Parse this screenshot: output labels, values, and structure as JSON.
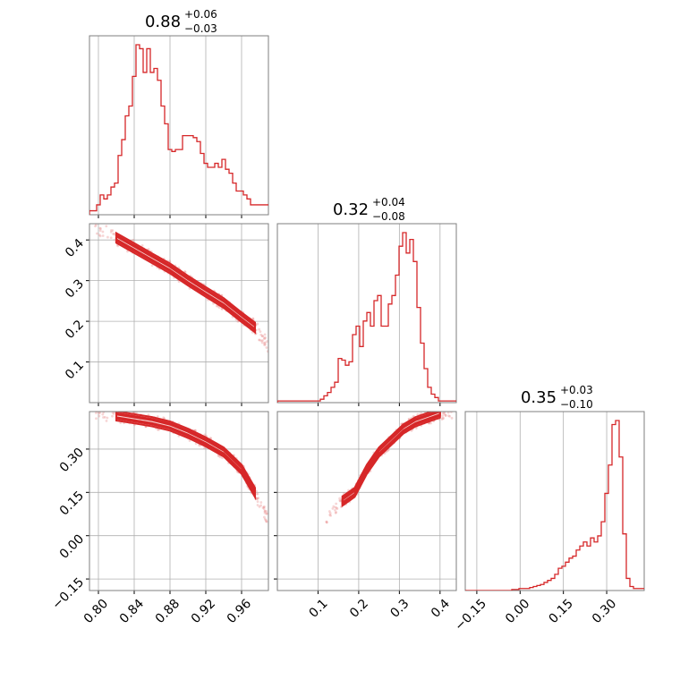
{
  "colors": {
    "series": "#d62728",
    "grid": "#b0b0b0",
    "frame": "#7f7f7f"
  },
  "chart_data": {
    "type": "corner",
    "parameters": [
      {
        "title_value": "0.88",
        "title_plus": "+0.06",
        "title_minus": "−0.03",
        "range": [
          0.79,
          0.99
        ],
        "ticks": [
          0.8,
          0.84,
          0.88,
          0.92,
          0.96
        ],
        "tick_labels": [
          "0.80",
          "0.84",
          "0.88",
          "0.92",
          "0.96"
        ]
      },
      {
        "title_value": "0.32",
        "title_plus": "+0.04",
        "title_minus": "−0.08",
        "range": [
          0.0,
          0.44
        ],
        "ticks": [
          0.1,
          0.2,
          0.3,
          0.4
        ],
        "tick_labels": [
          "0.1",
          "0.2",
          "0.3",
          "0.4"
        ]
      },
      {
        "title_value": "0.35",
        "title_plus": "+0.03",
        "title_minus": "−0.10",
        "range": [
          -0.19,
          0.43
        ],
        "ticks": [
          -0.15,
          0.0,
          0.15,
          0.3
        ],
        "tick_labels": [
          "−0.15",
          "0.00",
          "0.15",
          "0.30"
        ]
      }
    ],
    "histograms": [
      {
        "bin_start": 0.79,
        "bin_width": 0.004,
        "counts": [
          0.02,
          0.02,
          0.05,
          0.1,
          0.08,
          0.1,
          0.14,
          0.16,
          0.3,
          0.38,
          0.5,
          0.55,
          0.7,
          0.86,
          0.84,
          0.72,
          0.84,
          0.72,
          0.74,
          0.68,
          0.55,
          0.46,
          0.33,
          0.32,
          0.33,
          0.33,
          0.4,
          0.4,
          0.4,
          0.39,
          0.37,
          0.31,
          0.26,
          0.24,
          0.24,
          0.26,
          0.24,
          0.28,
          0.23,
          0.21,
          0.16,
          0.12,
          0.12,
          0.1,
          0.08,
          0.05,
          0.05,
          0.05,
          0.05,
          0.05
        ]
      },
      {
        "bin_start": 0.0,
        "bin_width": 0.0088,
        "counts": [
          0.01,
          0.01,
          0.01,
          0.01,
          0.01,
          0.01,
          0.01,
          0.01,
          0.01,
          0.01,
          0.01,
          0.01,
          0.02,
          0.04,
          0.06,
          0.09,
          0.12,
          0.26,
          0.25,
          0.22,
          0.24,
          0.4,
          0.45,
          0.33,
          0.48,
          0.53,
          0.45,
          0.6,
          0.63,
          0.45,
          0.45,
          0.58,
          0.63,
          0.75,
          0.92,
          1.0,
          0.88,
          0.96,
          0.83,
          0.56,
          0.35,
          0.2,
          0.09,
          0.05,
          0.03,
          0.01,
          0.01,
          0.01,
          0.01,
          0.01
        ]
      },
      {
        "bin_start": -0.19,
        "bin_width": 0.0124,
        "counts": [
          0.0,
          0.0,
          0.0,
          0.0,
          0.0,
          0.0,
          0.0,
          0.0,
          0.0,
          0.0,
          0.0,
          0.0,
          0.0,
          0.005,
          0.005,
          0.01,
          0.01,
          0.01,
          0.015,
          0.02,
          0.025,
          0.03,
          0.04,
          0.05,
          0.06,
          0.08,
          0.11,
          0.12,
          0.14,
          0.16,
          0.17,
          0.2,
          0.22,
          0.24,
          0.22,
          0.26,
          0.24,
          0.27,
          0.34,
          0.48,
          0.62,
          0.82,
          0.84,
          0.66,
          0.28,
          0.06,
          0.02,
          0.01,
          0.01,
          0.01
        ]
      }
    ],
    "pairs": [
      {
        "x_param": 0,
        "y_param": 1,
        "trend": [
          [
            0.795,
            0.435
          ],
          [
            0.82,
            0.405
          ],
          [
            0.84,
            0.38
          ],
          [
            0.86,
            0.355
          ],
          [
            0.88,
            0.33
          ],
          [
            0.9,
            0.3
          ],
          [
            0.92,
            0.272
          ],
          [
            0.94,
            0.245
          ],
          [
            0.96,
            0.21
          ],
          [
            0.975,
            0.185
          ],
          [
            0.99,
            0.14
          ]
        ],
        "band_width": 0.012
      },
      {
        "x_param": 0,
        "y_param": 2,
        "trend": [
          [
            0.795,
            0.43
          ],
          [
            0.82,
            0.415
          ],
          [
            0.84,
            0.405
          ],
          [
            0.86,
            0.395
          ],
          [
            0.88,
            0.38
          ],
          [
            0.9,
            0.355
          ],
          [
            0.92,
            0.325
          ],
          [
            0.94,
            0.29
          ],
          [
            0.96,
            0.23
          ],
          [
            0.975,
            0.15
          ],
          [
            0.99,
            0.05
          ]
        ],
        "band_width": 0.016
      },
      {
        "x_param": 1,
        "y_param": 2,
        "trend": [
          [
            0.12,
            0.05
          ],
          [
            0.16,
            0.12
          ],
          [
            0.19,
            0.15
          ],
          [
            0.22,
            0.23
          ],
          [
            0.25,
            0.29
          ],
          [
            0.28,
            0.33
          ],
          [
            0.31,
            0.37
          ],
          [
            0.34,
            0.395
          ],
          [
            0.37,
            0.41
          ],
          [
            0.4,
            0.425
          ],
          [
            0.43,
            0.43
          ]
        ],
        "band_width": 0.016
      }
    ]
  }
}
